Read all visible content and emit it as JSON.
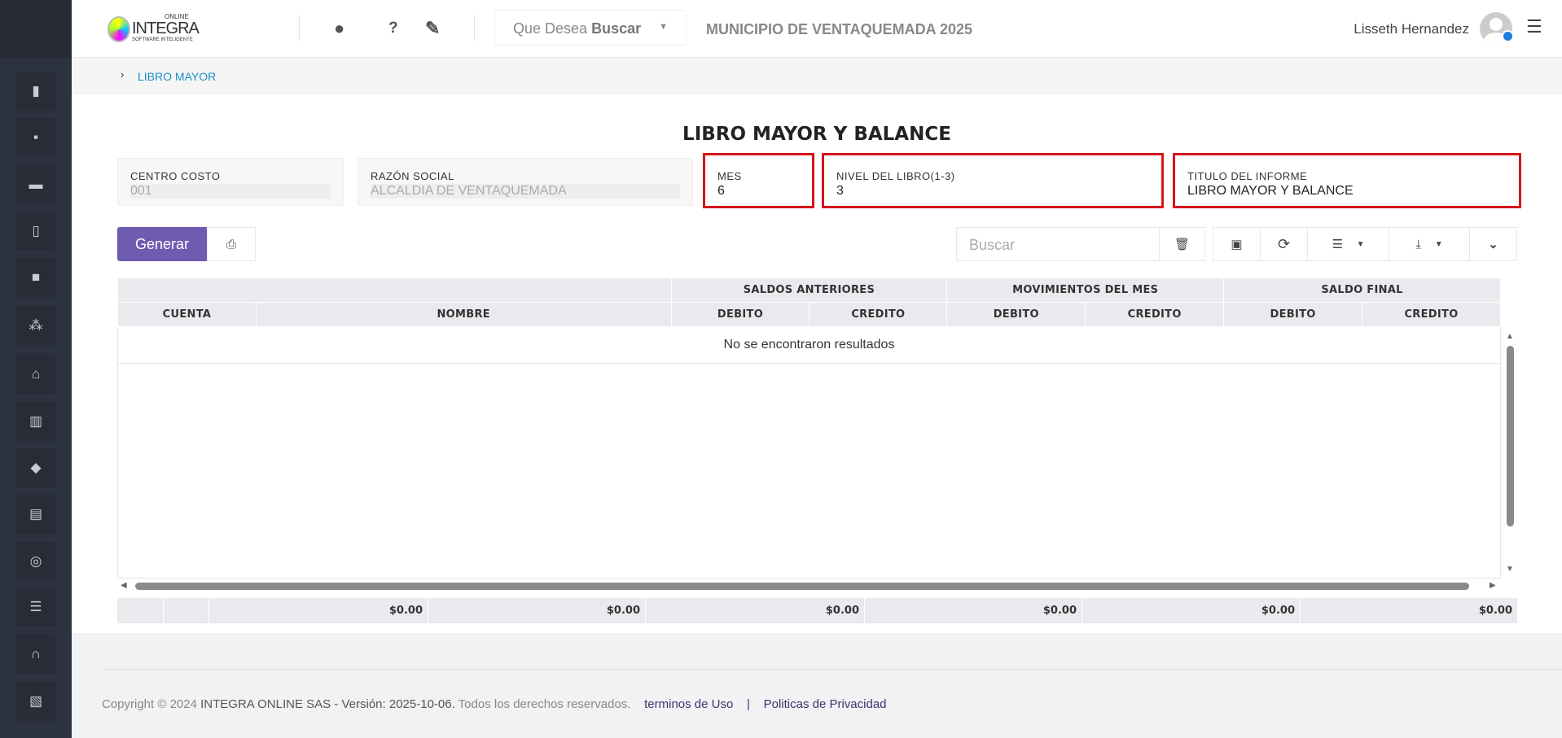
{
  "header": {
    "logo_text": "INTEGRA",
    "logo_sub": "SOFTWARE INTELIGENTE",
    "logo_top": "ONLINE",
    "search_placeholder_prefix": "Que Desea",
    "search_placeholder_bold": "Buscar",
    "org_title": "MUNICIPIO DE VENTAQUEMADA 2025",
    "user_name": "Lisseth Hernandez"
  },
  "breadcrumb": {
    "item": "LIBRO MAYOR"
  },
  "sidebar": {
    "icons": [
      "book-icon",
      "comment-icon",
      "money-icon",
      "clipboard-icon",
      "briefcase-icon",
      "cubes-icon",
      "home-icon",
      "building-icon",
      "tags-icon",
      "file-icon",
      "lifebuoy-icon",
      "list-icon",
      "headset-icon",
      "pdf-icon"
    ]
  },
  "form": {
    "title": "LIBRO MAYOR Y BALANCE",
    "centro_costo": {
      "label": "CENTRO COSTO",
      "value": "001"
    },
    "razon_social": {
      "label": "RAZÓN SOCIAL",
      "value": "ALCALDIA DE VENTAQUEMADA"
    },
    "mes": {
      "label": "MES",
      "value": "6"
    },
    "nivel": {
      "label": "NIVEL DEL LIBRO(1-3)",
      "value": "3"
    },
    "titulo": {
      "label": "TITULO DEL INFORME",
      "value": "LIBRO MAYOR Y BALANCE"
    }
  },
  "toolbar": {
    "generar": "Generar",
    "search_placeholder": "Buscar"
  },
  "table": {
    "groups": [
      "SALDOS ANTERIORES",
      "MOVIMIENTOS DEL MES",
      "SALDO FINAL"
    ],
    "cuenta": "CUENTA",
    "nombre": "NOMBRE",
    "debito": "DEBITO",
    "credito": "CREDITO",
    "empty": "No se encontraron resultados"
  },
  "totals": [
    "$0.00",
    "$0.00",
    "$0.00",
    "$0.00",
    "$0.00",
    "$0.00"
  ],
  "footer": {
    "copyright": "Copyright © 2024",
    "company": "INTEGRA ONLINE SAS - Versión: 2025-10-06.",
    "rights": "Todos los derechos reservados.",
    "terms": "terminos de Uso",
    "sep": "|",
    "privacy": "Politicas de Privacidad"
  },
  "colors": {
    "primary": "#6f5bb0",
    "highlight": "#d4151b",
    "link": "#1a8fc9"
  }
}
